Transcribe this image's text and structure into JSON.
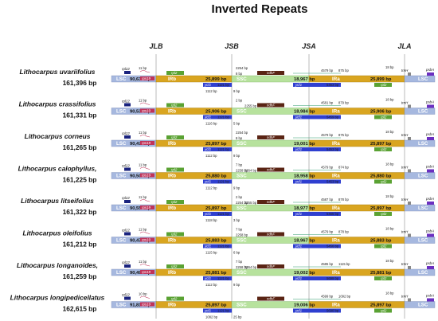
{
  "title": "Inverted Repeats",
  "junctions": [
    "JLB",
    "JSB",
    "JSA",
    "JLA"
  ],
  "region_labels": {
    "lsc": "LSC",
    "irb": "IRb",
    "ssc": "SSC",
    "ira": "IRa"
  },
  "species": [
    {
      "name": "Lithocarpus uvariifolius",
      "length": "161,396 bp",
      "lsc": "90,631 bp",
      "irb": "25,899 bp",
      "ssc": "18,967 bp",
      "ira": "25,899 bp",
      "ycf1_a": "1121 bp",
      "ycf1_b": "5453 bp",
      "ycf1_full": "4579 bp",
      "ycf1_ov": "875 bp",
      "ndhf": "",
      "rps19_gap": "11 bp",
      "ssc_gap1": "2254 bp",
      "ssc_gap2": "8 bp",
      "jla_gap": "18 bp",
      "trnh": "trnH",
      "psba": "psbA",
      "bottom1": "1112 bp",
      "bottom2": "9 bp"
    },
    {
      "name": "Lithocarpus crassifolius",
      "length": "161,331 bp",
      "lsc": "90,535 bp",
      "irb": "25,906 bp",
      "ssc": "18,984 bp",
      "ira": "25,906 bp",
      "ycf1_a": "1121 bp",
      "ycf1_b": "5459 bp",
      "ycf1_full": "4581 bp",
      "ycf1_ov": "879 bp",
      "ndhf": "2255 bp",
      "rps19_gap": "11 bp",
      "ssc_gap1": "2 bp",
      "ssc_gap2": "",
      "jla_gap": "18 bp",
      "trnh": "trnH",
      "psba": "psbA",
      "bottom1": "1116 bp",
      "bottom2": "5 bp"
    },
    {
      "name": "Lithocarpus corneus",
      "length": "161,265 bp",
      "lsc": "90,470 bp",
      "irb": "25,897 bp",
      "ssc": "19,001 bp",
      "ira": "25,897 bp",
      "ycf1_a": "1121 bp",
      "ycf1_b": "5453 bp",
      "ycf1_full": "4579 bp",
      "ycf1_ov": "875 bp",
      "ndhf": "",
      "rps19_gap": "11 bp",
      "ssc_gap1": "2254 bp",
      "ssc_gap2": "8 bp",
      "jla_gap": "18 bp",
      "trnh": "trnH",
      "psba": "psbA",
      "bottom1": "1112 bp",
      "bottom2": "9 bp"
    },
    {
      "name": "Lithocarpus calophyllus,",
      "length": "161,225 bp",
      "lsc": "90,507 bp",
      "irb": "25,880 bp",
      "ssc": "18,958 bp",
      "ira": "25,880 bp",
      "ycf1_a": "1121 bp",
      "ycf1_b": "5453 bp",
      "ycf1_full": "4579 bp",
      "ycf1_ov": "874 bp",
      "ndhf": "2264 bp",
      "rps19_gap": "11 bp",
      "ssc_gap1": "7 bp",
      "ssc_gap2": "2258 bp",
      "jla_gap": "18 bp",
      "trnh": "trnH",
      "psba": "psbA",
      "bottom1": "1112 bp",
      "bottom2": "9 bp"
    },
    {
      "name": "Lithocarpus litseifolius",
      "length": "161,322 bp",
      "lsc": "90,551 bp",
      "irb": "25,897 bp",
      "ssc": "18,977 bp",
      "ira": "25,897 bp",
      "ycf1_a": "1121 bp",
      "ycf1_b": "5465 bp",
      "ycf1_full": "4587 bp",
      "ycf1_ov": "878 bp",
      "ndhf": "2255 bp",
      "rps19_gap": "11 bp",
      "ssc_gap1": "2 bp",
      "ssc_gap2": "2254 bp",
      "jla_gap": "18 bp",
      "trnh": "trnH",
      "psba": "psbA",
      "bottom1": "1118 bp",
      "bottom2": "3 bp"
    },
    {
      "name": "Lithocarpus oleifolius",
      "length": "161,212 bp",
      "lsc": "90,479 bp",
      "irb": "25,883 bp",
      "ssc": "18,967 bp",
      "ira": "25,883 bp",
      "ycf1_a": "1121 bp",
      "ycf1_b": "5456 bp",
      "ycf1_full": "4579 bp",
      "ycf1_ov": "878 bp",
      "ndhf": "",
      "rps19_gap": "11 bp",
      "ssc_gap1": "7 bp",
      "ssc_gap2": "2258 bp",
      "jla_gap": "18 bp",
      "trnh": "trnH",
      "psba": "psbA",
      "bottom1": "1115 bp",
      "bottom2": "6 bp"
    },
    {
      "name": "Lithocarpus longanoides,",
      "length": "161,259 bp",
      "lsc": "90,495 bp",
      "irb": "25,881 bp",
      "ssc": "19,002 bp",
      "ira": "25,881 bp",
      "ycf1_a": "1121 bp",
      "ycf1_b": "5699 bp",
      "ycf1_full": "4585 bp",
      "ycf1_ov": "1115 bp",
      "ndhf": "2264 bp",
      "rps19_gap": "11 bp",
      "ssc_gap1": "7 bp",
      "ssc_gap2": "2258 bp",
      "jla_gap": "18 bp",
      "trnh": "trnH",
      "psba": "psbA",
      "bottom1": "1112 bp",
      "bottom2": "9 bp"
    },
    {
      "name": "Lithocarpus longipedicellatus",
      "length": "162,615 bp",
      "lsc": "91,815 bp",
      "irb": "25,897 bp",
      "ssc": "19,006 bp",
      "ira": "25,897 bp",
      "ycf1_a": "1121 bp",
      "ycf1_b": "5690 bp",
      "ycf1_full": "4599 bp",
      "ycf1_ov": "1092 bp",
      "ndhf": "",
      "rps19_gap": "10 bp",
      "ssc_gap1": "",
      "ssc_gap2": "",
      "jla_gap": "18 bp",
      "trnh": "trnH",
      "psba": "psbA",
      "bottom1": "1082 bp",
      "bottom2": "25 bp"
    }
  ],
  "genes": {
    "rpl22": "rpl22",
    "rps19": "rps19",
    "rpl2": "rpl2",
    "ndhf": "ndhF",
    "ycf1": "ycf1",
    "trnh": "trnH",
    "psba": "psbA"
  },
  "colors": {
    "lsc": "#a6b8df",
    "irb": "#d9a520",
    "ssc": "#b7e29d",
    "ira": "#d9a520",
    "rpl22": "#1a237e",
    "rps19": "#c0335a",
    "rpl2": "#5aa233",
    "ndhf": "#5a2414",
    "ycf1": "#2f3fd0",
    "trnh": "#888888",
    "psba": "#6b2fc0"
  }
}
